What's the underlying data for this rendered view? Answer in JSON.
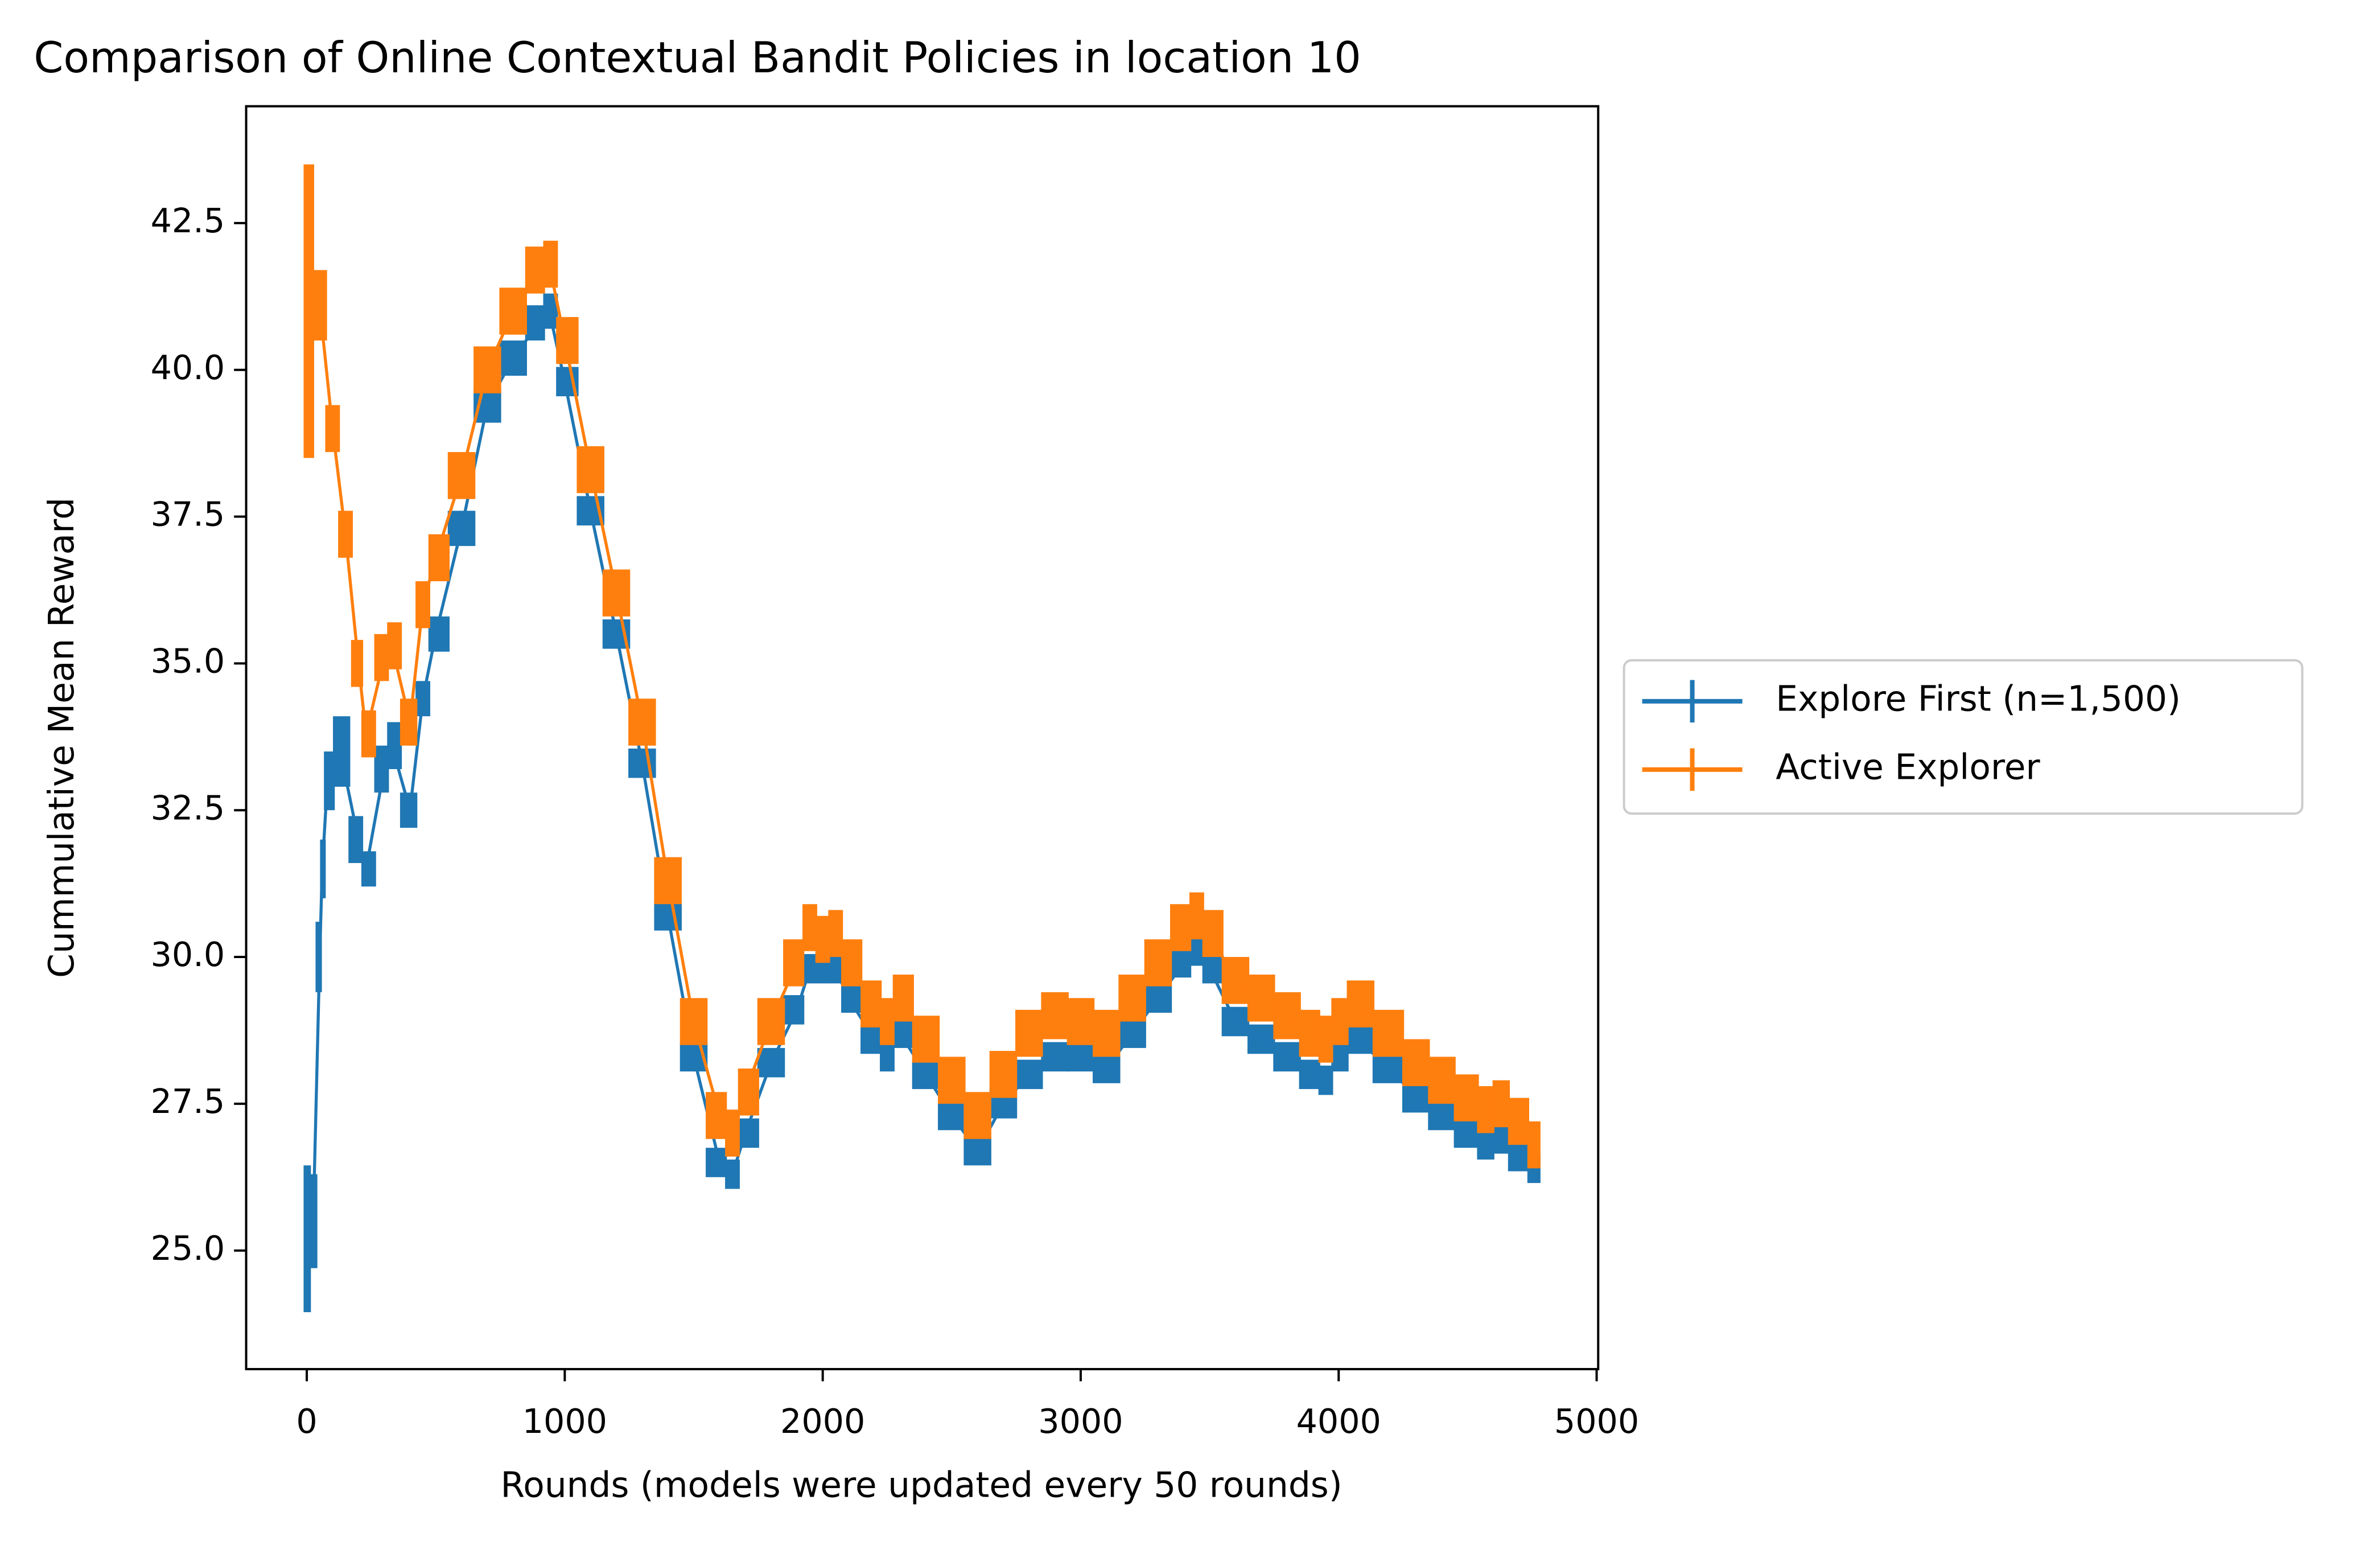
{
  "chart_data": {
    "type": "line",
    "title": "Comparison of Online Contextual Bandit Policies in location 10",
    "xlabel": "Rounds (models were updated every 50 rounds)",
    "ylabel": "Cummulative Mean Reward",
    "xlim": [
      -235,
      5006
    ],
    "ylim": [
      22.98,
      44.49
    ],
    "xticks": [
      0,
      1000,
      2000,
      3000,
      4000,
      5000
    ],
    "yticks": [
      {
        "value": 25,
        "label": "25.0"
      },
      27.5,
      {
        "value": 30,
        "label": "30.0"
      },
      32.5,
      {
        "value": 35,
        "label": "35.0"
      },
      37.5,
      {
        "value": 40,
        "label": "40.0"
      },
      42.5
    ],
    "legend": "right-outside",
    "series": [
      {
        "name": "Explore First (n=1,500)",
        "color": "#1f77b4",
        "x": [
          0,
          25,
          50,
          60,
          80,
          130,
          200,
          230,
          300,
          330,
          400,
          450,
          500,
          600,
          700,
          800,
          900,
          940,
          1000,
          1100,
          1200,
          1300,
          1400,
          1500,
          1600,
          1650,
          1700,
          1800,
          1900,
          1950,
          2000,
          2050,
          2100,
          2200,
          2250,
          2300,
          2400,
          2500,
          2600,
          2700,
          2800,
          2900,
          3000,
          3100,
          3200,
          3300,
          3400,
          3450,
          3500,
          3600,
          3700,
          3800,
          3900,
          3950,
          4000,
          4070,
          4200,
          4300,
          4400,
          4500,
          4580,
          4620,
          4700,
          4770
        ],
        "values": [
          25.2,
          25.5,
          30,
          31.5,
          33,
          33.5,
          32,
          31.5,
          33.2,
          33.6,
          32.5,
          34.4,
          35.5,
          37.3,
          39.4,
          40.2,
          40.8,
          41.0,
          39.8,
          37.6,
          35.5,
          33.3,
          30.7,
          28.3,
          26.5,
          26.3,
          27.0,
          28.2,
          29.1,
          29.8,
          29.8,
          29.8,
          29.3,
          28.6,
          28.3,
          28.7,
          28.0,
          27.3,
          26.7,
          27.5,
          28.0,
          28.3,
          28.3,
          28.1,
          28.7,
          29.3,
          29.9,
          30.1,
          29.8,
          28.9,
          28.6,
          28.3,
          28.0,
          27.9,
          28.3,
          28.6,
          28.1,
          27.6,
          27.3,
          27.0,
          26.8,
          26.9,
          26.6,
          26.4
        ],
        "errors": [
          1.25,
          0.8,
          0.6,
          0.5,
          0.5,
          0.6,
          0.4,
          0.3,
          0.4,
          0.4,
          0.3,
          0.3,
          0.3,
          0.3,
          0.3,
          0.3,
          0.3,
          0.3,
          0.25,
          0.25,
          0.25,
          0.25,
          0.25,
          0.25,
          0.25,
          0.25,
          0.25,
          0.25,
          0.25,
          0.25,
          0.25,
          0.25,
          0.25,
          0.25,
          0.25,
          0.25,
          0.25,
          0.25,
          0.25,
          0.25,
          0.25,
          0.25,
          0.25,
          0.25,
          0.25,
          0.25,
          0.25,
          0.25,
          0.25,
          0.25,
          0.25,
          0.25,
          0.25,
          0.25,
          0.25,
          0.25,
          0.25,
          0.25,
          0.25,
          0.25,
          0.25,
          0.25,
          0.25,
          0.25
        ]
      },
      {
        "name": "Active Explorer",
        "color": "#ff7f0e",
        "x": [
          0,
          50,
          100,
          150,
          200,
          230,
          300,
          330,
          400,
          450,
          500,
          600,
          700,
          800,
          900,
          940,
          1000,
          1100,
          1200,
          1300,
          1400,
          1500,
          1600,
          1650,
          1700,
          1800,
          1900,
          1950,
          2000,
          2050,
          2100,
          2200,
          2250,
          2300,
          2400,
          2500,
          2600,
          2700,
          2800,
          2900,
          3000,
          3100,
          3200,
          3300,
          3400,
          3450,
          3500,
          3600,
          3700,
          3800,
          3900,
          3950,
          4000,
          4070,
          4200,
          4300,
          4400,
          4500,
          4580,
          4620,
          4700,
          4770
        ],
        "values": [
          41,
          41.1,
          39,
          37.2,
          35.0,
          33.8,
          35.1,
          35.3,
          34.0,
          36.0,
          36.8,
          38.2,
          40.0,
          41.0,
          41.7,
          41.8,
          40.5,
          38.3,
          36.2,
          34.0,
          31.3,
          28.9,
          27.3,
          27.0,
          27.7,
          28.9,
          29.9,
          30.5,
          30.3,
          30.4,
          29.9,
          29.2,
          28.9,
          29.3,
          28.6,
          27.9,
          27.3,
          28.0,
          28.7,
          29.0,
          28.9,
          28.7,
          29.3,
          29.9,
          30.5,
          30.7,
          30.4,
          29.6,
          29.3,
          29.0,
          28.7,
          28.6,
          28.9,
          29.2,
          28.7,
          28.2,
          27.9,
          27.6,
          27.4,
          27.5,
          27.2,
          26.8
        ],
        "errors": [
          2.5,
          0.6,
          0.4,
          0.4,
          0.4,
          0.4,
          0.4,
          0.4,
          0.4,
          0.4,
          0.4,
          0.4,
          0.4,
          0.4,
          0.4,
          0.4,
          0.4,
          0.4,
          0.4,
          0.4,
          0.4,
          0.4,
          0.4,
          0.4,
          0.4,
          0.4,
          0.4,
          0.4,
          0.4,
          0.4,
          0.4,
          0.4,
          0.4,
          0.4,
          0.4,
          0.4,
          0.4,
          0.4,
          0.4,
          0.4,
          0.4,
          0.4,
          0.4,
          0.4,
          0.4,
          0.4,
          0.4,
          0.4,
          0.4,
          0.4,
          0.4,
          0.4,
          0.4,
          0.4,
          0.4,
          0.4,
          0.4,
          0.4,
          0.4,
          0.4,
          0.4,
          0.4
        ]
      }
    ]
  }
}
